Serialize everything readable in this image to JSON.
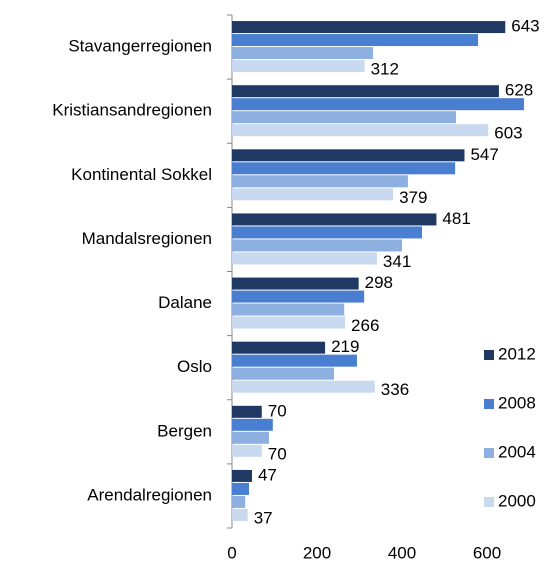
{
  "chart_data": {
    "type": "bar",
    "orientation": "horizontal",
    "categories": [
      "Stavangerregionen",
      "Kristiansandregionen",
      "Kontinental Sokkel",
      "Mandalsregionen",
      "Dalane",
      "Oslo",
      "Bergen",
      "Arendalregionen"
    ],
    "series": [
      {
        "name": "2012",
        "color": "#1f3864",
        "data_labels": true,
        "values": [
          643,
          628,
          547,
          481,
          298,
          219,
          70,
          47
        ]
      },
      {
        "name": "2008",
        "color": "#4a7ed0",
        "data_labels": false,
        "values": [
          579,
          687,
          525,
          447,
          311,
          294,
          96,
          40
        ]
      },
      {
        "name": "2004",
        "color": "#8eb0e0",
        "data_labels": false,
        "values": [
          332,
          527,
          414,
          400,
          264,
          240,
          87,
          31
        ]
      },
      {
        "name": "2000",
        "color": "#c9d9f0",
        "data_labels": true,
        "values": [
          312,
          603,
          379,
          341,
          266,
          336,
          70,
          37
        ]
      }
    ],
    "xlim": [
      0,
      700
    ],
    "xticks": [
      0,
      200,
      400,
      600
    ],
    "grid": false,
    "legend": "right"
  }
}
